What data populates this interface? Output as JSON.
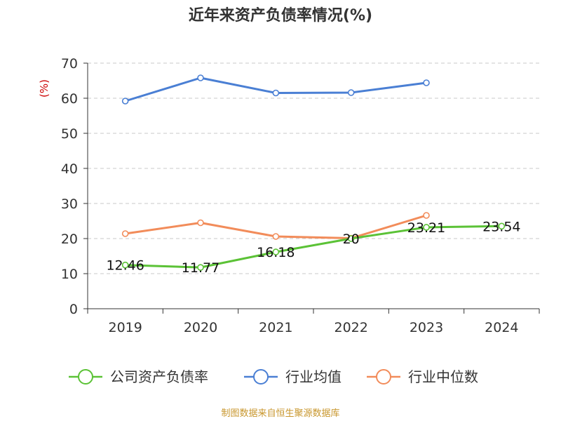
{
  "chart_data": {
    "type": "line",
    "title": "近年来资产负债率情况(%)",
    "ylabel": "(%)",
    "xlabel": "",
    "categories": [
      "2019",
      "2020",
      "2021",
      "2022",
      "2023",
      "2024"
    ],
    "ylim": [
      0,
      70
    ],
    "yticks": [
      0,
      10,
      20,
      30,
      40,
      50,
      60,
      70
    ],
    "grid": true,
    "legend": "bottom",
    "series": [
      {
        "name": "公司资产负债率",
        "color": "#5bc236",
        "values": [
          12.46,
          11.77,
          16.18,
          20,
          23.21,
          23.54
        ],
        "labels": [
          "12.46",
          "11.77",
          "16.18",
          "20",
          "23.21",
          "23.54"
        ]
      },
      {
        "name": "行业均值",
        "color": "#4a7fd4",
        "values": [
          59.2,
          65.8,
          61.5,
          61.6,
          64.4,
          null
        ]
      },
      {
        "name": "行业中位数",
        "color": "#f28c5a",
        "values": [
          21.4,
          24.5,
          20.6,
          20.1,
          26.6,
          null
        ]
      }
    ],
    "source": "制图数据来自恒生聚源数据库"
  }
}
